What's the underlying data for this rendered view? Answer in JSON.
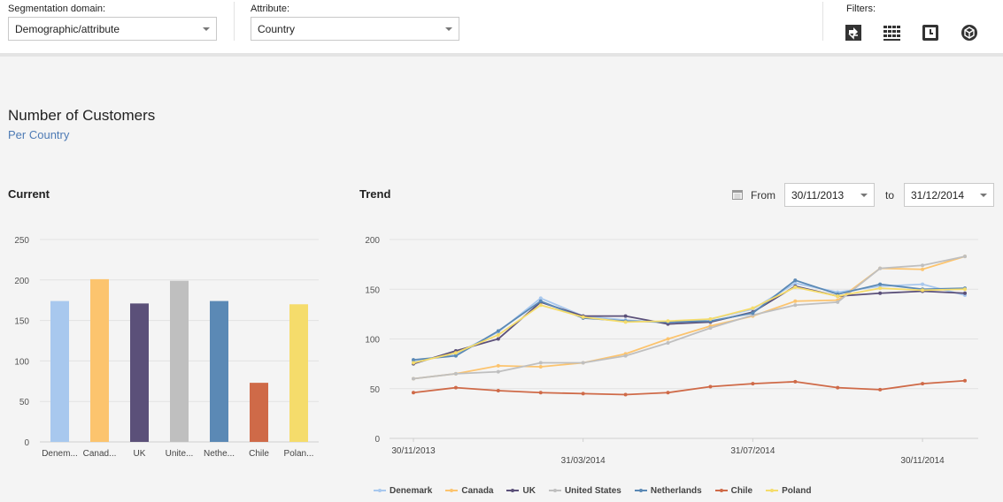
{
  "toolbar": {
    "segmentation_label": "Segmentation domain:",
    "segmentation_value": "Demographic/attribute",
    "attribute_label": "Attribute:",
    "attribute_value": "Country",
    "filters_label": "Filters:",
    "filter_icons": [
      "swap-arrows-icon",
      "grid-icon",
      "clock-icon",
      "cube-icon"
    ]
  },
  "header": {
    "title": "Number of Customers",
    "subtitle": "Per Country"
  },
  "current": {
    "title": "Current"
  },
  "trend": {
    "title": "Trend",
    "from_label": "From",
    "from_value": "30/11/2013",
    "to_label": "to",
    "to_value": "31/12/2014"
  },
  "chart_data": [
    {
      "type": "bar",
      "title": "Current",
      "categories": [
        "Denem...",
        "Canad...",
        "UK",
        "Unite...",
        "Nethe...",
        "Chile",
        "Polan..."
      ],
      "values": [
        174,
        201,
        171,
        199,
        174,
        73,
        170
      ],
      "colors": [
        "#a8c8ee",
        "#fcc46e",
        "#5b5079",
        "#bfbfbf",
        "#5b89b5",
        "#cf6a48",
        "#f5dc6b"
      ],
      "ylim": [
        0,
        250
      ],
      "yticks": [
        0,
        50,
        100,
        150,
        200,
        250
      ],
      "grid": true
    },
    {
      "type": "line",
      "title": "Trend",
      "x": [
        "30/11/2013",
        "31/12/2013",
        "31/01/2014",
        "28/02/2014",
        "31/03/2014",
        "30/04/2014",
        "31/05/2014",
        "30/06/2014",
        "31/07/2014",
        "31/08/2014",
        "30/09/2014",
        "31/10/2014",
        "30/11/2014",
        "31/12/2014"
      ],
      "xticks": [
        {
          "label": "30/11/2013",
          "index": 0,
          "row": 0
        },
        {
          "label": "31/03/2014",
          "index": 4,
          "row": 1
        },
        {
          "label": "31/07/2014",
          "index": 8,
          "row": 0
        },
        {
          "label": "30/11/2014",
          "index": 12,
          "row": 1
        }
      ],
      "ylim": [
        0,
        200
      ],
      "yticks": [
        0,
        50,
        100,
        150,
        200
      ],
      "grid": true,
      "legend_position": "bottom",
      "series": [
        {
          "name": "Denemark",
          "color": "#a8c8ee",
          "values": [
            77,
            85,
            107,
            141,
            123,
            119,
            116,
            120,
            130,
            156,
            147,
            153,
            155,
            144
          ]
        },
        {
          "name": "Canada",
          "color": "#fcc46e",
          "values": [
            60,
            65,
            73,
            72,
            76,
            85,
            100,
            113,
            123,
            138,
            139,
            171,
            170,
            183
          ]
        },
        {
          "name": "UK",
          "color": "#5b5079",
          "values": [
            75,
            88,
            100,
            137,
            123,
            123,
            115,
            117,
            127,
            153,
            143,
            146,
            148,
            146
          ]
        },
        {
          "name": "United States",
          "color": "#bfbfbf",
          "values": [
            60,
            65,
            67,
            76,
            76,
            83,
            96,
            111,
            124,
            134,
            137,
            171,
            174,
            183
          ]
        },
        {
          "name": "Netherlands",
          "color": "#5b89b5",
          "values": [
            79,
            83,
            108,
            138,
            121,
            118,
            117,
            118,
            126,
            159,
            145,
            155,
            150,
            151
          ]
        },
        {
          "name": "Chile",
          "color": "#cf6a48",
          "values": [
            46,
            51,
            48,
            46,
            45,
            44,
            46,
            52,
            55,
            57,
            51,
            49,
            55,
            58
          ]
        },
        {
          "name": "Poland",
          "color": "#f5dc6b",
          "values": [
            76,
            86,
            104,
            134,
            122,
            117,
            118,
            120,
            131,
            152,
            143,
            151,
            149,
            150
          ]
        }
      ]
    }
  ]
}
